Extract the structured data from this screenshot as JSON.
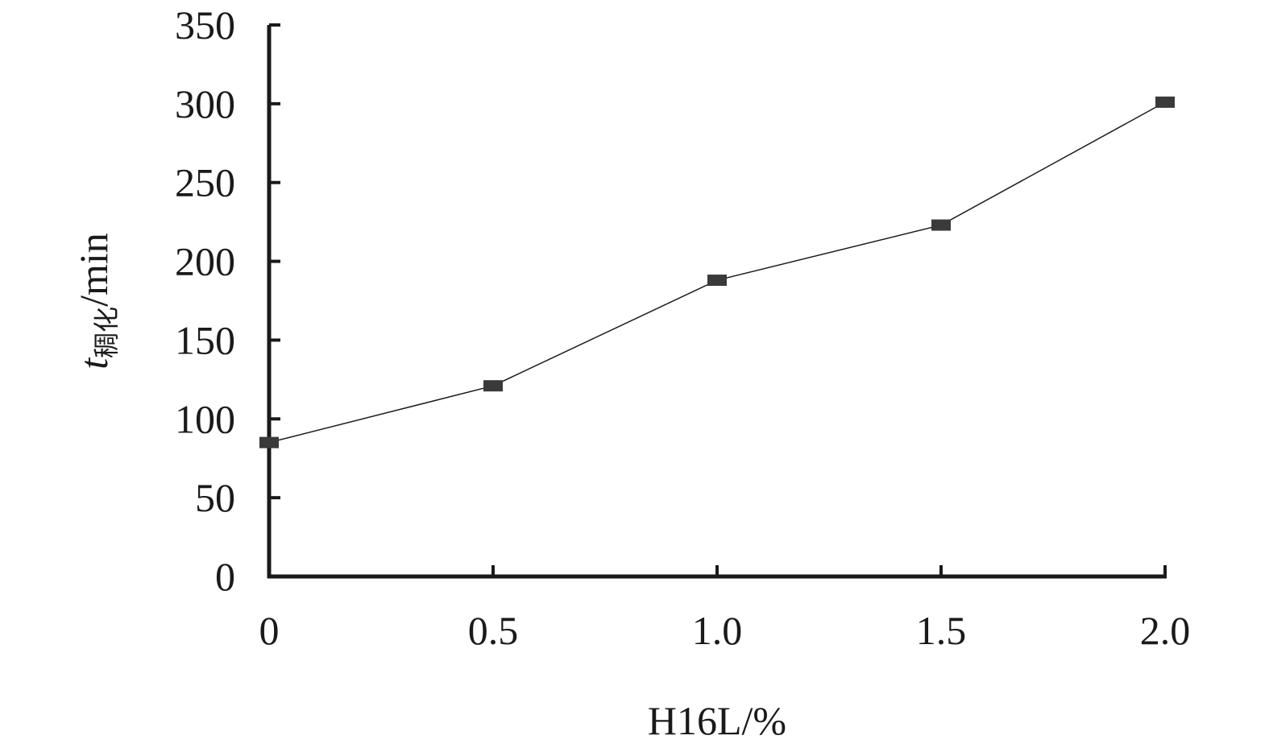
{
  "chart_data": {
    "type": "line",
    "x": [
      0,
      0.5,
      1.0,
      1.5,
      2.0
    ],
    "series": [
      {
        "values": [
          85,
          121,
          188,
          223,
          301
        ]
      }
    ],
    "xlabel": "H16L/%",
    "ylabel_var": "t",
    "ylabel_sub": "稠化",
    "ylabel_unit": "/min",
    "xlim": [
      0,
      2.0
    ],
    "ylim": [
      0,
      350
    ],
    "xticks": [
      "0",
      "0.5",
      "1.0",
      "1.5",
      "2.0"
    ],
    "yticks": [
      "0",
      "50",
      "100",
      "150",
      "200",
      "250",
      "300",
      "350"
    ],
    "grid": false,
    "legend": "none",
    "colors": {
      "line": "#1a1a1a",
      "marker": "#3a3a3a",
      "axis": "#1a1a1a"
    }
  }
}
